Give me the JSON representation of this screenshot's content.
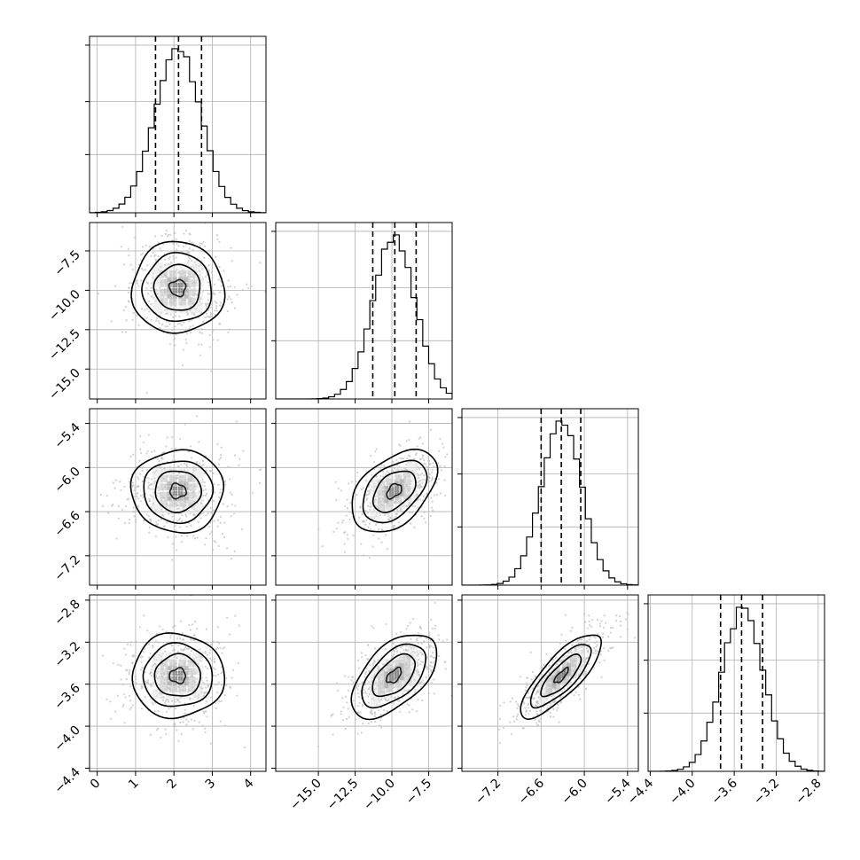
{
  "chart_data": {
    "type": "corner",
    "parameters": [
      {
        "id": "p0",
        "range": [
          -0.2,
          4.4
        ],
        "ticks": [
          0,
          1,
          2,
          3,
          4
        ],
        "tick_labels": [
          "0",
          "1",
          "2",
          "3",
          "4"
        ],
        "mean": 2.1,
        "std": 0.6,
        "quantiles": [
          1.52,
          2.12,
          2.72
        ],
        "hist_peak": 2.25
      },
      {
        "id": "p1",
        "range": [
          -17.9,
          -5.9
        ],
        "ticks": [
          -15.0,
          -12.5,
          -10.0,
          -7.5
        ],
        "tick_labels": [
          "−15.0",
          "−12.5",
          "−10.0",
          "−7.5"
        ],
        "mean": -9.85,
        "std": 1.45,
        "quantiles": [
          -11.3,
          -9.8,
          -8.35
        ],
        "hist_peak": -9.7
      },
      {
        "id": "p2",
        "range": [
          -7.7,
          -5.25
        ],
        "ticks": [
          -7.2,
          -6.6,
          -6.0,
          -5.4
        ],
        "tick_labels": [
          "−7.2",
          "−6.6",
          "−6.0",
          "−5.4"
        ],
        "mean": -6.32,
        "std": 0.28,
        "quantiles": [
          -6.6,
          -6.32,
          -6.05
        ],
        "hist_peak": -6.3
      },
      {
        "id": "p3",
        "range": [
          -4.42,
          -2.74
        ],
        "ticks": [
          -4.4,
          -4.0,
          -3.6,
          -3.2,
          -2.8
        ],
        "tick_labels": [
          "−4.4",
          "−4.0",
          "−3.6",
          "−3.2",
          "−2.8"
        ],
        "mean": -3.52,
        "std": 0.2,
        "quantiles": [
          -3.73,
          -3.53,
          -3.33
        ],
        "hist_peak": -3.55
      }
    ],
    "y_axis_ranges_rows": [
      null,
      [
        -16.9,
        -5.7
      ],
      [
        -7.6,
        -5.2
      ],
      [
        -4.43,
        -2.75
      ]
    ],
    "correlations": [
      [
        1,
        0,
        0,
        0
      ],
      [
        0,
        1,
        0.45,
        0.55
      ],
      [
        0,
        0.45,
        1,
        0.8
      ],
      [
        0,
        0.55,
        0.8,
        1
      ]
    ],
    "grid": true,
    "histogram_bins": 30
  }
}
